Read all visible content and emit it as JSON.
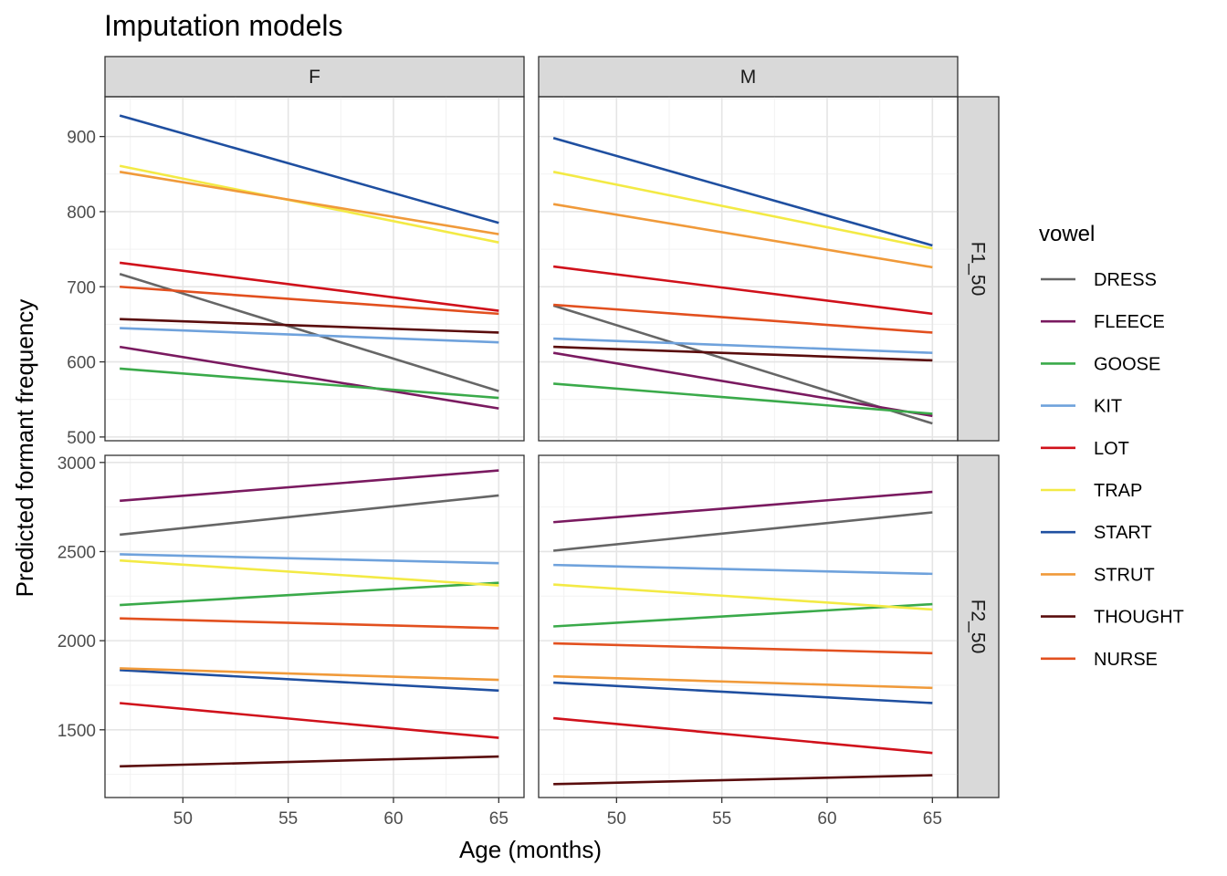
{
  "chart_data": {
    "type": "line",
    "title": "Imputation models",
    "xlabel": "Age (months)",
    "ylabel": "Predicted formant frequency",
    "legend_title": "vowel",
    "legend_position": "right",
    "grid": true,
    "xlim": [
      46.3,
      66.2
    ],
    "x_ticks": [
      50,
      55,
      60,
      65
    ],
    "columns": [
      "F",
      "M"
    ],
    "rows": [
      {
        "name": "F1_50",
        "ylim": [
          495,
          953
        ],
        "y_ticks": [
          500,
          600,
          700,
          800,
          900
        ]
      },
      {
        "name": "F2_50",
        "ylim": [
          1120,
          3040
        ],
        "y_ticks": [
          1500,
          2000,
          2500,
          3000
        ]
      }
    ],
    "x": [
      47,
      65
    ],
    "series": [
      {
        "name": "DRESS",
        "color": "#666666"
      },
      {
        "name": "FLEECE",
        "color": "#7a1a60"
      },
      {
        "name": "GOOSE",
        "color": "#3aaa4a"
      },
      {
        "name": "KIT",
        "color": "#6fa2dc"
      },
      {
        "name": "LOT",
        "color": "#d0111b"
      },
      {
        "name": "TRAP",
        "color": "#f3ea45"
      },
      {
        "name": "START",
        "color": "#1f4fa0"
      },
      {
        "name": "STRUT",
        "color": "#f09a3a"
      },
      {
        "name": "THOUGHT",
        "color": "#5a0d0d"
      },
      {
        "name": "NURSE",
        "color": "#e2501f"
      }
    ],
    "panels": [
      {
        "row": "F1_50",
        "col": "F",
        "lines": {
          "DRESS": [
            717,
            561
          ],
          "FLEECE": [
            620,
            538
          ],
          "GOOSE": [
            591,
            552
          ],
          "KIT": [
            645,
            626
          ],
          "LOT": [
            732,
            668
          ],
          "TRAP": [
            861,
            759
          ],
          "START": [
            928,
            785
          ],
          "STRUT": [
            853,
            770
          ],
          "THOUGHT": [
            657,
            639
          ],
          "NURSE": [
            700,
            664
          ]
        }
      },
      {
        "row": "F1_50",
        "col": "M",
        "lines": {
          "DRESS": [
            675,
            518
          ],
          "FLEECE": [
            612,
            528
          ],
          "GOOSE": [
            571,
            531
          ],
          "KIT": [
            631,
            612
          ],
          "LOT": [
            727,
            664
          ],
          "TRAP": [
            853,
            751
          ],
          "START": [
            898,
            755
          ],
          "STRUT": [
            810,
            726
          ],
          "THOUGHT": [
            620,
            602
          ],
          "NURSE": [
            676,
            639
          ]
        }
      },
      {
        "row": "F2_50",
        "col": "F",
        "lines": {
          "DRESS": [
            2595,
            2815
          ],
          "FLEECE": [
            2785,
            2955
          ],
          "GOOSE": [
            2200,
            2325
          ],
          "KIT": [
            2485,
            2435
          ],
          "LOT": [
            1650,
            1455
          ],
          "TRAP": [
            2450,
            2310
          ],
          "START": [
            1835,
            1720
          ],
          "STRUT": [
            1845,
            1780
          ],
          "THOUGHT": [
            1295,
            1350
          ],
          "NURSE": [
            2125,
            2070
          ]
        }
      },
      {
        "row": "F2_50",
        "col": "M",
        "lines": {
          "DRESS": [
            2505,
            2720
          ],
          "FLEECE": [
            2665,
            2835
          ],
          "GOOSE": [
            2080,
            2205
          ],
          "KIT": [
            2425,
            2375
          ],
          "LOT": [
            1565,
            1370
          ],
          "TRAP": [
            2315,
            2175
          ],
          "START": [
            1765,
            1650
          ],
          "STRUT": [
            1800,
            1735
          ],
          "THOUGHT": [
            1195,
            1245
          ],
          "NURSE": [
            1985,
            1930
          ]
        }
      }
    ]
  }
}
